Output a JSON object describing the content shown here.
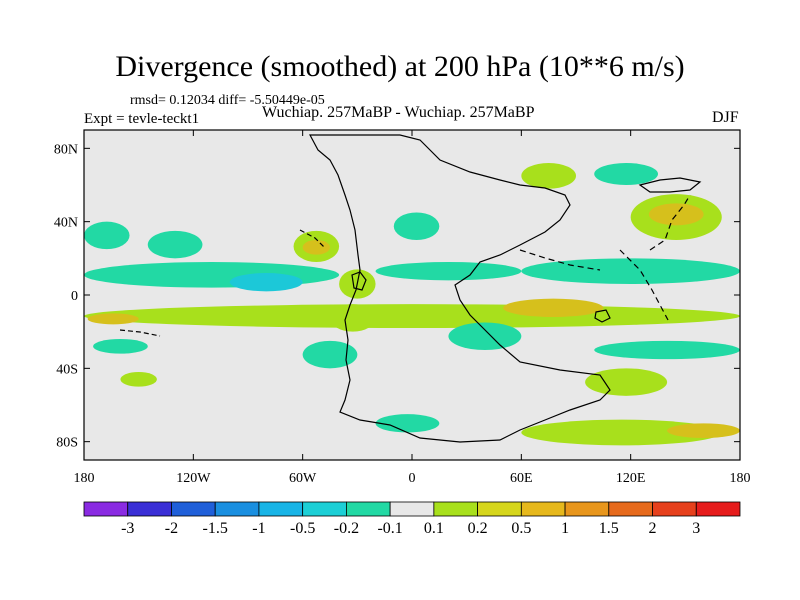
{
  "title": "Divergence (smoothed) at 200 hPa (10**6 m/s)",
  "stats": "rmsd= 0.12034 diff= -5.50449e-05",
  "experiment": "Expt = tevle-teckt1",
  "subtitle": "Wuchiap. 257MaBP - Wuchiap. 257MaBP",
  "season": "DJF",
  "chart_data": {
    "type": "heatmap",
    "projection": "cylindrical-equidistant",
    "variable": "Divergence (smoothed) at 200 hPa",
    "units": "10**6 m/s",
    "xlim": [
      -180,
      180
    ],
    "ylim": [
      -90,
      90
    ],
    "x_ticks": [
      {
        "value": -180,
        "label": "180"
      },
      {
        "value": -120,
        "label": "120W"
      },
      {
        "value": -60,
        "label": "60W"
      },
      {
        "value": 0,
        "label": "0"
      },
      {
        "value": 60,
        "label": "60E"
      },
      {
        "value": 120,
        "label": "120E"
      },
      {
        "value": 180,
        "label": "180"
      }
    ],
    "y_ticks": [
      {
        "value": 80,
        "label": "80N"
      },
      {
        "value": 40,
        "label": "40N"
      },
      {
        "value": 0,
        "label": "0"
      },
      {
        "value": -40,
        "label": "40S"
      },
      {
        "value": -80,
        "label": "80S"
      }
    ],
    "colorbar": {
      "labels": [
        "-3",
        "-2",
        "-1.5",
        "-1",
        "-0.5",
        "-0.2",
        "-0.1",
        "0.1",
        "0.2",
        "0.5",
        "1",
        "1.5",
        "2",
        "3"
      ],
      "colors": [
        "#8a2be2",
        "#3a2fd6",
        "#1f5fd9",
        "#1a8fe0",
        "#18b4e6",
        "#1ccfd6",
        "#22d9a4",
        "#e8e8e8",
        "#a8e01c",
        "#d6d61c",
        "#e6b81c",
        "#e8961c",
        "#e66a1c",
        "#e6401c",
        "#e61c1c"
      ]
    },
    "regions": [
      {
        "sign": "pos",
        "level": 1,
        "lon": [
          -180,
          180
        ],
        "lat": [
          -18,
          -5
        ]
      },
      {
        "sign": "pos",
        "level": 2,
        "lon": [
          -178,
          -150
        ],
        "lat": [
          -16,
          -10
        ]
      },
      {
        "sign": "pos",
        "level": 2,
        "lon": [
          50,
          105
        ],
        "lat": [
          -12,
          -2
        ]
      },
      {
        "sign": "neg",
        "level": 1,
        "lon": [
          -180,
          -40
        ],
        "lat": [
          4,
          18
        ]
      },
      {
        "sign": "neg",
        "level": 2,
        "lon": [
          -100,
          -60
        ],
        "lat": [
          2,
          12
        ]
      },
      {
        "sign": "pos",
        "level": 1,
        "lon": [
          -65,
          -40
        ],
        "lat": [
          18,
          35
        ]
      },
      {
        "sign": "pos",
        "level": 2,
        "lon": [
          -60,
          -45
        ],
        "lat": [
          22,
          30
        ]
      },
      {
        "sign": "neg",
        "level": 1,
        "lon": [
          -20,
          60
        ],
        "lat": [
          8,
          18
        ]
      },
      {
        "sign": "pos",
        "level": 1,
        "lon": [
          -40,
          -20
        ],
        "lat": [
          -2,
          14
        ]
      },
      {
        "sign": "neg",
        "level": 1,
        "lon": [
          60,
          180
        ],
        "lat": [
          6,
          20
        ]
      },
      {
        "sign": "pos",
        "level": 1,
        "lon": [
          120,
          170
        ],
        "lat": [
          30,
          55
        ]
      },
      {
        "sign": "pos",
        "level": 2,
        "lon": [
          130,
          160
        ],
        "lat": [
          38,
          50
        ]
      },
      {
        "sign": "neg",
        "level": 1,
        "lon": [
          -175,
          -145
        ],
        "lat": [
          -32,
          -24
        ]
      },
      {
        "sign": "pos",
        "level": 1,
        "lon": [
          -160,
          -140
        ],
        "lat": [
          -50,
          -42
        ]
      },
      {
        "sign": "neg",
        "level": 1,
        "lon": [
          -60,
          -30
        ],
        "lat": [
          -40,
          -25
        ]
      },
      {
        "sign": "pos",
        "level": 1,
        "lon": [
          -45,
          -20
        ],
        "lat": [
          -20,
          -5
        ]
      },
      {
        "sign": "neg",
        "level": 1,
        "lon": [
          20,
          60
        ],
        "lat": [
          -30,
          -15
        ]
      },
      {
        "sign": "neg",
        "level": 1,
        "lon": [
          100,
          180
        ],
        "lat": [
          -35,
          -25
        ]
      },
      {
        "sign": "pos",
        "level": 1,
        "lon": [
          95,
          140
        ],
        "lat": [
          -55,
          -40
        ]
      },
      {
        "sign": "neg",
        "level": 1,
        "lon": [
          -20,
          15
        ],
        "lat": [
          -75,
          -65
        ]
      },
      {
        "sign": "pos",
        "level": 1,
        "lon": [
          60,
          170
        ],
        "lat": [
          -82,
          -68
        ]
      },
      {
        "sign": "pos",
        "level": 2,
        "lon": [
          140,
          180
        ],
        "lat": [
          -78,
          -70
        ]
      },
      {
        "sign": "neg",
        "level": 1,
        "lon": [
          -180,
          -155
        ],
        "lat": [
          25,
          40
        ]
      },
      {
        "sign": "neg",
        "level": 1,
        "lon": [
          -145,
          -115
        ],
        "lat": [
          20,
          35
        ]
      },
      {
        "sign": "neg",
        "level": 1,
        "lon": [
          -10,
          15
        ],
        "lat": [
          30,
          45
        ]
      },
      {
        "sign": "pos",
        "level": 1,
        "lon": [
          60,
          90
        ],
        "lat": [
          58,
          72
        ]
      },
      {
        "sign": "neg",
        "level": 1,
        "lon": [
          100,
          135
        ],
        "lat": [
          60,
          72
        ]
      }
    ]
  }
}
